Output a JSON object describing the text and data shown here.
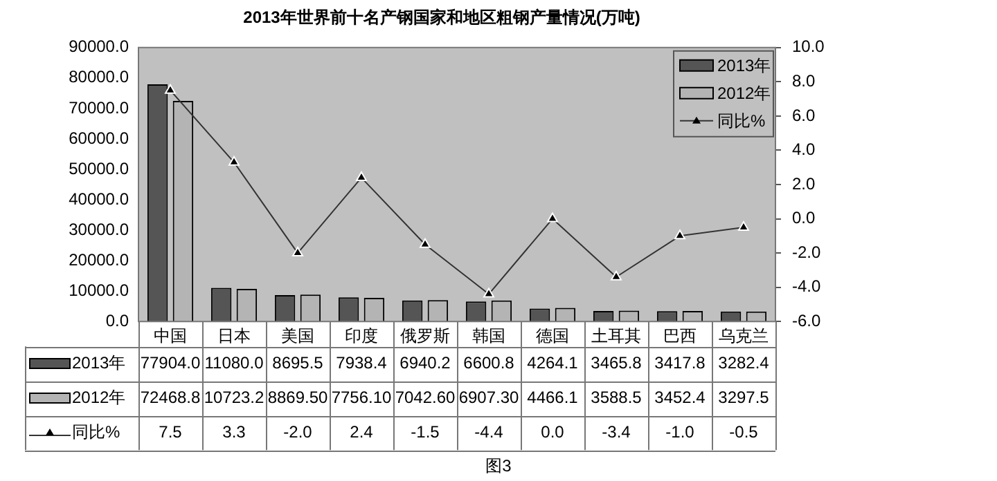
{
  "chart_data": {
    "type": "bar",
    "title": "2013年世界前十名产钢国家和地区粗钢产量情况(万吨)",
    "categories": [
      "中国",
      "日本",
      "美国",
      "印度",
      "俄罗斯",
      "韩国",
      "德国",
      "土耳其",
      "巴西",
      "乌克兰"
    ],
    "series": [
      {
        "name": "2013年",
        "color": "#555555",
        "values": [
          77904.0,
          11080.0,
          8695.5,
          7938.4,
          6940.2,
          6600.8,
          4264.1,
          3465.8,
          3417.8,
          3282.4
        ],
        "value_labels": [
          "77904.0",
          "11080.0",
          "8695.5",
          "7938.4",
          "6940.2",
          "6600.8",
          "4264.1",
          "3465.8",
          "3417.8",
          "3282.4"
        ]
      },
      {
        "name": "2012年",
        "color": "#b4b4b4",
        "values": [
          72468.8,
          10723.2,
          8869.5,
          7756.1,
          7042.6,
          6907.3,
          4466.1,
          3588.5,
          3452.4,
          3297.5
        ],
        "value_labels": [
          "72468.8",
          "10723.2",
          "8869.50",
          "7756.10",
          "7042.60",
          "6907.30",
          "4466.1",
          "3588.5",
          "3452.4",
          "3297.5"
        ]
      },
      {
        "name": "同比%",
        "type": "line",
        "axis": "y2",
        "color": "#333333",
        "marker": "triangle",
        "values": [
          7.5,
          3.3,
          -2.0,
          2.4,
          -1.5,
          -4.4,
          0.0,
          -3.4,
          -1.0,
          -0.5
        ],
        "value_labels": [
          "7.5",
          "3.3",
          "-2.0",
          "2.4",
          "-1.5",
          "-4.4",
          "0.0",
          "-3.4",
          "-1.0",
          "-0.5"
        ]
      }
    ],
    "ylim": [
      0,
      90000
    ],
    "yticks": [
      {
        "value": 0,
        "label": "0.0"
      },
      {
        "value": 10000,
        "label": "10000.0"
      },
      {
        "value": 20000,
        "label": "20000.0"
      },
      {
        "value": 30000,
        "label": "30000.0"
      },
      {
        "value": 40000,
        "label": "40000.0"
      },
      {
        "value": 50000,
        "label": "50000.0"
      },
      {
        "value": 60000,
        "label": "60000.0"
      },
      {
        "value": 70000,
        "label": "70000.0"
      },
      {
        "value": 80000,
        "label": "80000.0"
      },
      {
        "value": 90000,
        "label": "90000.0"
      }
    ],
    "y2lim": [
      -6,
      10
    ],
    "y2ticks": [
      {
        "value": -6,
        "label": "-6.0"
      },
      {
        "value": -4,
        "label": "-4.0"
      },
      {
        "value": -2,
        "label": "-2.0"
      },
      {
        "value": 0,
        "label": "0.0"
      },
      {
        "value": 2,
        "label": "2.0"
      },
      {
        "value": 4,
        "label": "4.0"
      },
      {
        "value": 6,
        "label": "6.0"
      },
      {
        "value": 8,
        "label": "8.0"
      },
      {
        "value": 10,
        "label": "10.0"
      }
    ],
    "grid": false,
    "legend": "top right",
    "annotations": [
      "图3"
    ]
  }
}
